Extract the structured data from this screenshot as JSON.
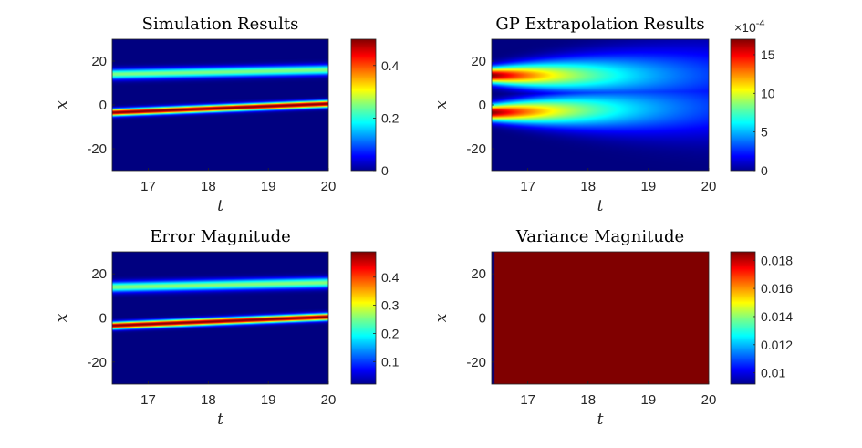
{
  "chart_data": [
    {
      "type": "heatmap",
      "title": "Simulation Results",
      "xlabel": "t",
      "ylabel": "x",
      "xlim": [
        16.4,
        20
      ],
      "ylim": [
        -30,
        30
      ],
      "xticks": [
        17,
        18,
        19,
        20
      ],
      "xticklabels": [
        "17",
        "18",
        "19",
        "20"
      ],
      "yticks": [
        20,
        0,
        -20
      ],
      "yticklabels": [
        "20",
        "0",
        "-20"
      ],
      "colormap": "jet",
      "clim": [
        0,
        0.5
      ],
      "colorbar_ticks": [
        0,
        0.2,
        0.4
      ],
      "colorbar_ticklabels": [
        "0",
        "0.2",
        "0.4"
      ],
      "colorbar_exponent": "",
      "bands": [
        {
          "t": [
            16.4,
            20
          ],
          "x": [
            14.0,
            16.0
          ],
          "width": 1.6,
          "peak": 0.25
        },
        {
          "t": [
            16.4,
            20
          ],
          "x": [
            -3.5,
            0.5
          ],
          "width": 1.1,
          "peak": 0.5
        }
      ]
    },
    {
      "type": "heatmap",
      "title": "GP Extrapolation Results",
      "xlabel": "t",
      "ylabel": "x",
      "xlim": [
        16.4,
        20
      ],
      "ylim": [
        -30,
        30
      ],
      "xticks": [
        17,
        18,
        19,
        20
      ],
      "xticklabels": [
        "17",
        "18",
        "19",
        "20"
      ],
      "yticks": [
        20,
        0,
        -20
      ],
      "yticklabels": [
        "20",
        "0",
        "-20"
      ],
      "colormap": "jet",
      "clim": [
        0,
        0.0017
      ],
      "colorbar_ticks": [
        0,
        0.0005,
        0.001,
        0.0015
      ],
      "colorbar_ticklabels": [
        "0",
        "5",
        "10",
        "15"
      ],
      "colorbar_exponent": "×10",
      "colorbar_exponent_power": "-4",
      "bands": [
        {
          "t": [
            16.4,
            20
          ],
          "x": [
            13.5,
            13.5
          ],
          "width": 2.5,
          "peak": 0.0017,
          "width_growth": 3.0,
          "decay": 0.6
        },
        {
          "t": [
            16.4,
            20
          ],
          "x": [
            -3.5,
            -1.0
          ],
          "width": 2.5,
          "peak": 0.0017,
          "width_growth": 3.0,
          "decay": 0.6
        }
      ]
    },
    {
      "type": "heatmap",
      "title": "Error Magnitude",
      "xlabel": "t",
      "ylabel": "x",
      "xlim": [
        16.4,
        20
      ],
      "ylim": [
        -30,
        30
      ],
      "xticks": [
        17,
        18,
        19,
        20
      ],
      "xticklabels": [
        "17",
        "18",
        "19",
        "20"
      ],
      "yticks": [
        20,
        0,
        -20
      ],
      "yticklabels": [
        "20",
        "0",
        "-20"
      ],
      "colormap": "jet",
      "clim": [
        0.02,
        0.49
      ],
      "colorbar_ticks": [
        0.1,
        0.2,
        0.3,
        0.4
      ],
      "colorbar_ticklabels": [
        "0.1",
        "0.2",
        "0.3",
        "0.4"
      ],
      "colorbar_exponent": "",
      "bands": [
        {
          "t": [
            16.4,
            20
          ],
          "x": [
            14.0,
            16.0
          ],
          "width": 1.6,
          "peak": 0.25
        },
        {
          "t": [
            16.4,
            20
          ],
          "x": [
            -3.5,
            0.5
          ],
          "width": 1.1,
          "peak": 0.49
        }
      ]
    },
    {
      "type": "heatmap",
      "title": "Variance Magnitude",
      "xlabel": "t",
      "ylabel": "x",
      "xlim": [
        16.4,
        20
      ],
      "ylim": [
        -30,
        30
      ],
      "xticks": [
        17,
        18,
        19,
        20
      ],
      "xticklabels": [
        "17",
        "18",
        "19",
        "20"
      ],
      "yticks": [
        20,
        0,
        -20
      ],
      "yticklabels": [
        "20",
        "0",
        "-20"
      ],
      "colormap": "jet",
      "clim": [
        0.0092,
        0.0186
      ],
      "colorbar_ticks": [
        0.01,
        0.012,
        0.014,
        0.016,
        0.018
      ],
      "colorbar_ticklabels": [
        "0.01",
        "0.012",
        "0.014",
        "0.016",
        "0.018"
      ],
      "colorbar_exponent": "",
      "field": {
        "edge_t": 16.45,
        "low": 0.0092,
        "high": 0.0186
      }
    }
  ]
}
